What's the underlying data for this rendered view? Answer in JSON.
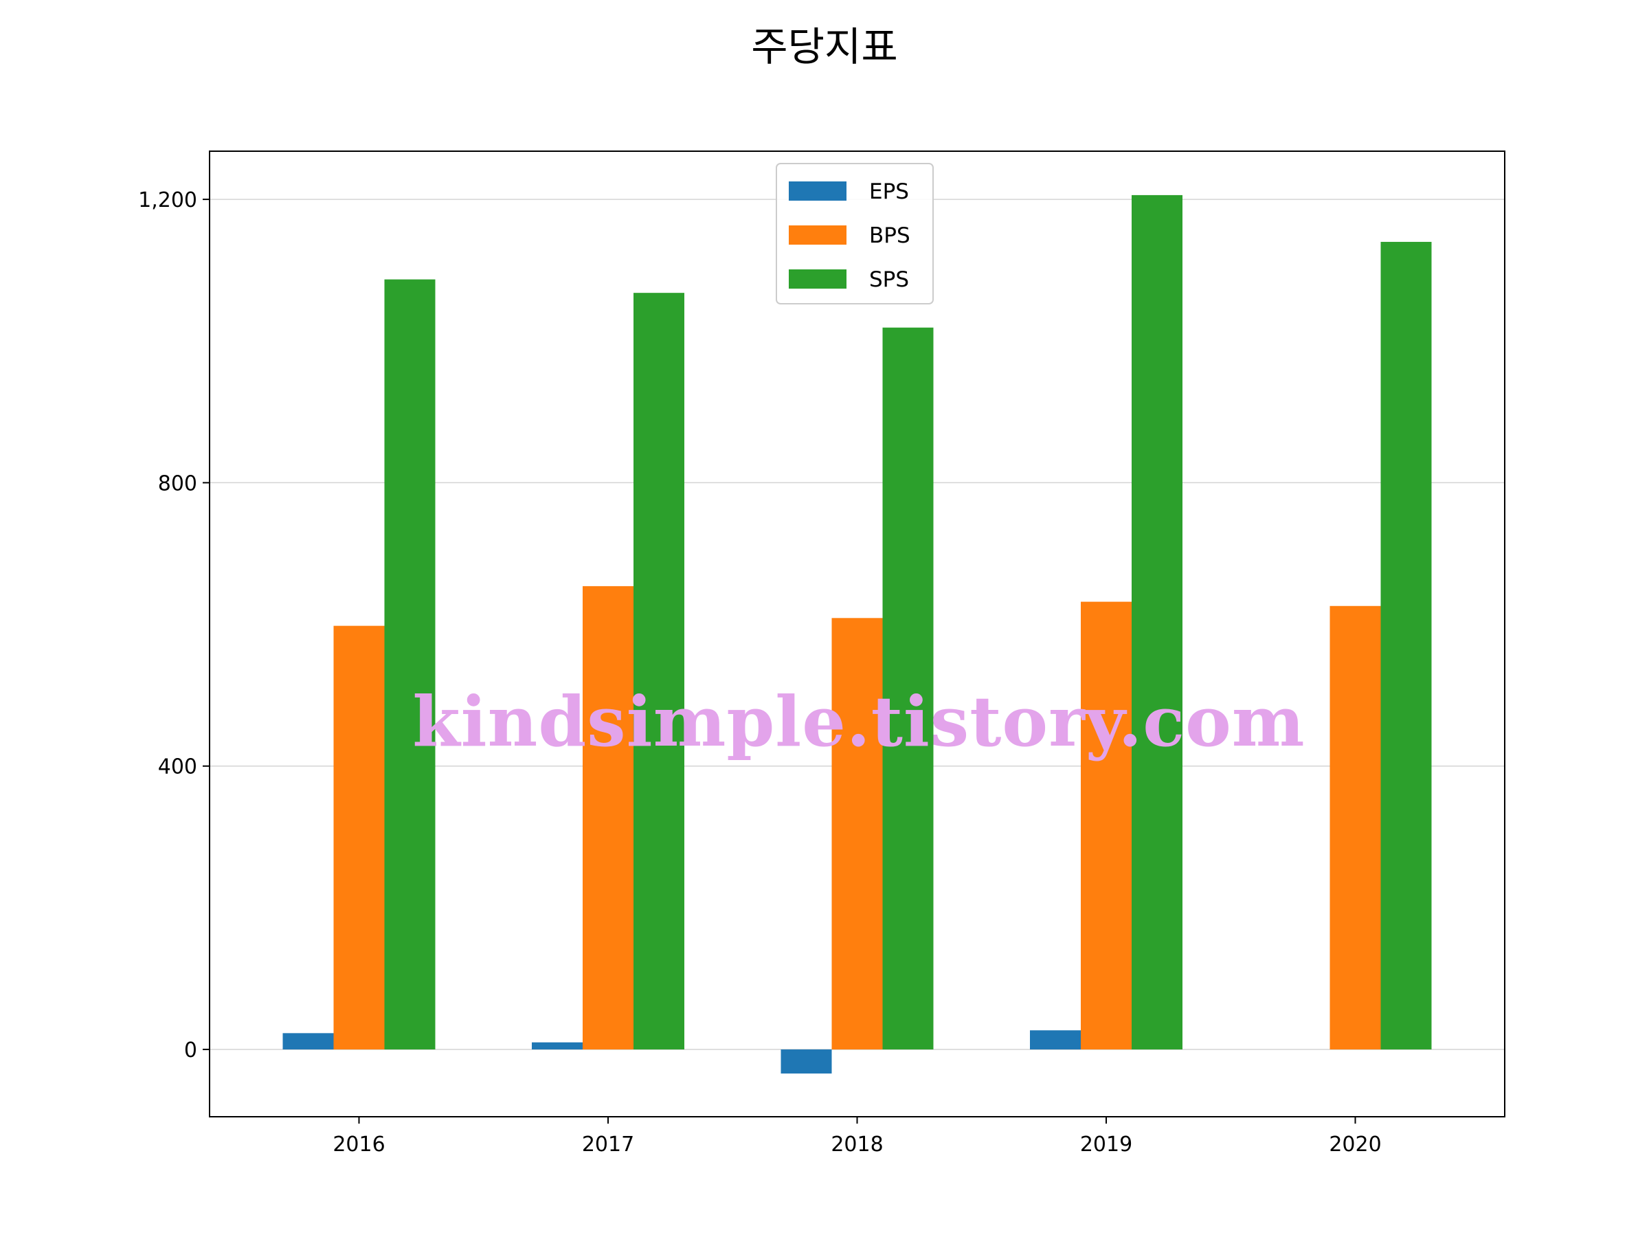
{
  "chart_data": {
    "type": "bar",
    "title": "주당지표",
    "xlabel": "",
    "ylabel": "",
    "categories": [
      "2016",
      "2017",
      "2018",
      "2019",
      "2020"
    ],
    "series": [
      {
        "name": "EPS",
        "color": "#1f77b4",
        "values": [
          23,
          10,
          -34,
          27,
          0
        ]
      },
      {
        "name": "BPS",
        "color": "#ff7f0e",
        "values": [
          598,
          654,
          609,
          632,
          626
        ]
      },
      {
        "name": "SPS",
        "color": "#2ca02c",
        "values": [
          1087,
          1068,
          1019,
          1206,
          1140
        ]
      }
    ],
    "ylim": [
      -95,
      1268
    ],
    "yticks": [
      0,
      400,
      800,
      1200
    ],
    "ytick_labels": [
      "0",
      "400",
      "800",
      "1,200"
    ],
    "grid": "horizontal",
    "legend_position": "top-center"
  },
  "watermark": "kindsimple.tistory.com"
}
